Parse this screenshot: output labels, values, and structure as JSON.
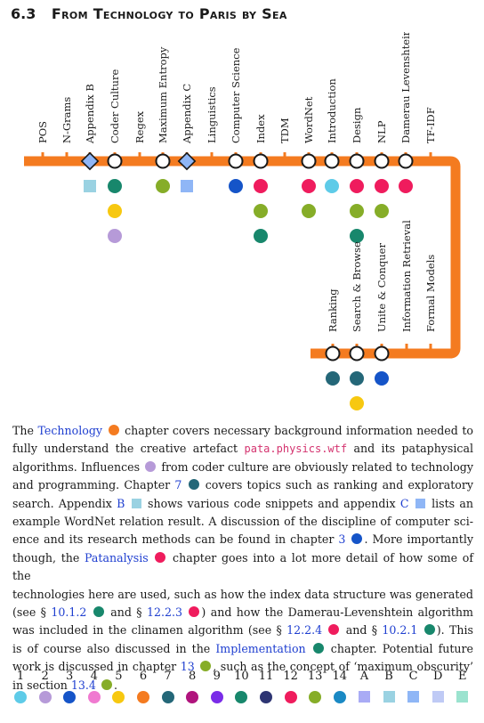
{
  "section": {
    "number": "6.3",
    "title": "From Technology to Paris by Sea"
  },
  "colors": {
    "line": "#f47b20",
    "c1": "#5ecbe8",
    "c2": "#b69ad8",
    "c3": "#1554c8",
    "c4": "#f07ad0",
    "c5": "#f7c810",
    "c6": "#f47b20",
    "c7": "#246778",
    "c8": "#b0147d",
    "c9": "#7a2ce8",
    "c10": "#18876c",
    "c11": "#2e3573",
    "c12": "#ef1c5d",
    "c13": "#86ad28",
    "c14": "#1a89c4",
    "cA": "#a9abf5",
    "cB": "#9ad2e2",
    "cC": "#8fb6f6",
    "cD": "#bfcaf5",
    "cE": "#9be3cf"
  },
  "top_stations": [
    {
      "label": "POS",
      "marker": "tick",
      "dots": []
    },
    {
      "label": "N-Grams",
      "marker": "tick",
      "dots": []
    },
    {
      "label": "Appendix B",
      "marker": "diamond",
      "dots": [
        "cB"
      ]
    },
    {
      "label": "Coder Culture",
      "marker": "circle",
      "dots": [
        "c10",
        "c5",
        "c2"
      ]
    },
    {
      "label": "Regex",
      "marker": "tick",
      "dots": []
    },
    {
      "label": "Maximum Entropy",
      "marker": "circle",
      "dots": [
        "c13"
      ]
    },
    {
      "label": "Appendix C",
      "marker": "diamond",
      "dots": [
        "cC"
      ]
    },
    {
      "label": "Linguistics",
      "marker": "tick",
      "dots": []
    },
    {
      "label": "Computer Science",
      "marker": "circle",
      "dots": [
        "c3"
      ]
    },
    {
      "label": "Index",
      "marker": "circle",
      "dots": [
        "c12",
        "c13",
        "c10"
      ]
    },
    {
      "label": "TDM",
      "marker": "tick",
      "dots": []
    },
    {
      "label": "WordNet",
      "marker": "circle",
      "dots": [
        "c12",
        "c13"
      ]
    },
    {
      "label": "Introduction",
      "marker": "circle",
      "dots": [
        "c1"
      ]
    },
    {
      "label": "Design",
      "marker": "circle",
      "dots": [
        "c12",
        "c13",
        "c10"
      ]
    },
    {
      "label": "NLP",
      "marker": "circle",
      "dots": [
        "c12",
        "c13"
      ]
    },
    {
      "label": "Damerau Levenshtein",
      "marker": "circle",
      "dots": [
        "c12"
      ]
    },
    {
      "label": "TF-IDF",
      "marker": "tick",
      "dots": []
    }
  ],
  "bottom_stations": [
    {
      "label": "Ranking",
      "marker": "circle",
      "dots": [
        "c7"
      ]
    },
    {
      "label": "Search & Browse",
      "marker": "circle",
      "dots": [
        "c7",
        "c5"
      ]
    },
    {
      "label": "Unite & Conquer",
      "marker": "circle",
      "dots": [
        "c3"
      ]
    },
    {
      "label": "Information Retrieval",
      "marker": "tick",
      "dots": []
    },
    {
      "label": "Formal Models",
      "marker": "tick",
      "dots": []
    }
  ],
  "paragraph": {
    "l1a": "The ",
    "l1_link": "Technology",
    "l1b": " chapter covers necessary background information needed to",
    "l2a": "fully understand the creative artefact ",
    "l2_code": "pata.physics.wtf",
    "l2b": " and its pataphysical",
    "l3a": "algorithms. Influences ",
    "l3b": " from coder culture are obviously related to technology",
    "l4a": "and programming. Chapter ",
    "l4_link": "7",
    "l4b": " covers topics such as ranking and exploratory",
    "l5a": "search. Appendix ",
    "l5_link1": "B",
    "l5b": " shows various code snippets and appendix ",
    "l5_link2": "C",
    "l5c": " lists an",
    "l6": "example WordNet relation result. A discussion of the discipline of computer sci-",
    "l7a": "ence and its research methods can be found in chapter ",
    "l7_link": "3",
    "l7b": ". More importantly",
    "l8a": "though, the ",
    "l8_link": "Patanalysis",
    "l8b": " chapter goes into a lot more detail of how some of the",
    "l9": "technologies here are used, such as how the index data structure was generated",
    "l10a": "(see § ",
    "l10_link1": "10.1.2",
    "l10b": " and § ",
    "l10_link2": "12.2.3",
    "l10c": ") and how the Damerau-Levenshtein algorithm",
    "l11a": "was included in the clinamen algorithm (see § ",
    "l11_link1": "12.2.4",
    "l11b": " and § ",
    "l11_link2": "10.2.1",
    "l11c": "). This",
    "l12a": "is of course also discussed in the ",
    "l12_link": "Implementation",
    "l12b": " chapter. Potential future",
    "l13a": "work is discussed in chapter ",
    "l13_link": "13",
    "l13b": ", such as the concept of ‘maximum obscurity’",
    "l14a": "in section ",
    "l14_link": "13.4",
    "l14b": "."
  },
  "legend": [
    {
      "label": "1",
      "color": "c1",
      "shape": "circle"
    },
    {
      "label": "2",
      "color": "c2",
      "shape": "circle"
    },
    {
      "label": "3",
      "color": "c3",
      "shape": "circle"
    },
    {
      "label": "4",
      "color": "c4",
      "shape": "circle"
    },
    {
      "label": "5",
      "color": "c5",
      "shape": "circle"
    },
    {
      "label": "6",
      "color": "c6",
      "shape": "circle"
    },
    {
      "label": "7",
      "color": "c7",
      "shape": "circle"
    },
    {
      "label": "8",
      "color": "c8",
      "shape": "circle"
    },
    {
      "label": "9",
      "color": "c9",
      "shape": "circle"
    },
    {
      "label": "10",
      "color": "c10",
      "shape": "circle"
    },
    {
      "label": "11",
      "color": "c11",
      "shape": "circle"
    },
    {
      "label": "12",
      "color": "c12",
      "shape": "circle"
    },
    {
      "label": "13",
      "color": "c13",
      "shape": "circle"
    },
    {
      "label": "14",
      "color": "c14",
      "shape": "circle"
    },
    {
      "label": "A",
      "color": "cA",
      "shape": "square"
    },
    {
      "label": "B",
      "color": "cB",
      "shape": "square"
    },
    {
      "label": "C",
      "color": "cC",
      "shape": "square"
    },
    {
      "label": "D",
      "color": "cD",
      "shape": "square"
    },
    {
      "label": "E",
      "color": "cE",
      "shape": "square"
    }
  ]
}
